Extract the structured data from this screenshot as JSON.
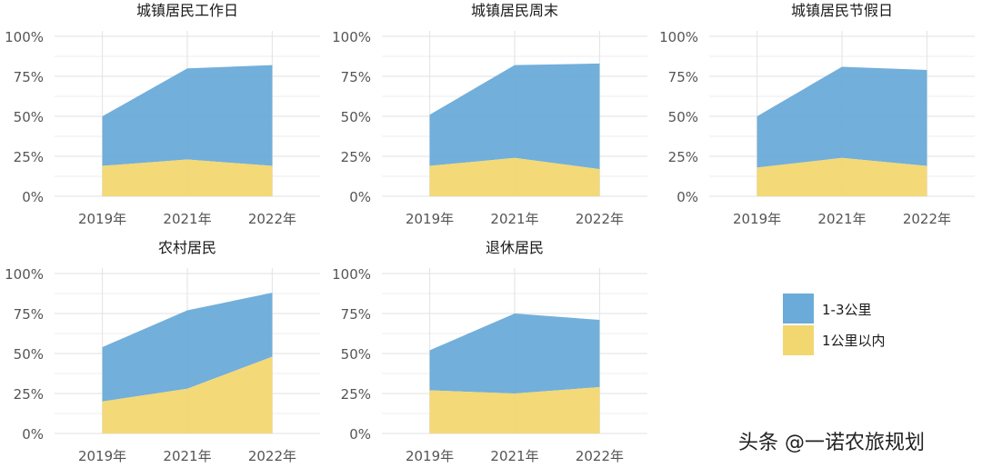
{
  "chart_data": [
    {
      "type": "area",
      "title": "城镇居民工作日",
      "x": [
        "2019年",
        "2021年",
        "2022年"
      ],
      "yticks": [
        "0%",
        "25%",
        "50%",
        "75%",
        "100%"
      ],
      "ylim": [
        0,
        1
      ],
      "grid": true,
      "stacked": true,
      "series": [
        {
          "name": "1公里以内",
          "values": [
            0.19,
            0.23,
            0.19
          ]
        },
        {
          "name": "1-3公里",
          "values": [
            0.31,
            0.57,
            0.63
          ]
        }
      ]
    },
    {
      "type": "area",
      "title": "城镇居民周末",
      "x": [
        "2019年",
        "2021年",
        "2022年"
      ],
      "yticks": [
        "0%",
        "25%",
        "50%",
        "75%",
        "100%"
      ],
      "ylim": [
        0,
        1
      ],
      "grid": true,
      "stacked": true,
      "series": [
        {
          "name": "1公里以内",
          "values": [
            0.19,
            0.24,
            0.17
          ]
        },
        {
          "name": "1-3公里",
          "values": [
            0.32,
            0.58,
            0.66
          ]
        }
      ]
    },
    {
      "type": "area",
      "title": "城镇居民节假日",
      "x": [
        "2019年",
        "2021年",
        "2022年"
      ],
      "yticks": [
        "0%",
        "25%",
        "50%",
        "75%",
        "100%"
      ],
      "ylim": [
        0,
        1
      ],
      "grid": true,
      "stacked": true,
      "series": [
        {
          "name": "1公里以内",
          "values": [
            0.18,
            0.24,
            0.19
          ]
        },
        {
          "name": "1-3公里",
          "values": [
            0.32,
            0.57,
            0.6
          ]
        }
      ]
    },
    {
      "type": "area",
      "title": "农村居民",
      "x": [
        "2019年",
        "2021年",
        "2022年"
      ],
      "yticks": [
        "0%",
        "25%",
        "50%",
        "75%",
        "100%"
      ],
      "ylim": [
        0,
        1
      ],
      "grid": true,
      "stacked": true,
      "series": [
        {
          "name": "1公里以内",
          "values": [
            0.2,
            0.28,
            0.48
          ]
        },
        {
          "name": "1-3公里",
          "values": [
            0.34,
            0.49,
            0.4
          ]
        }
      ]
    },
    {
      "type": "area",
      "title": "退休居民",
      "x": [
        "2019年",
        "2021年",
        "2022年"
      ],
      "yticks": [
        "0%",
        "25%",
        "50%",
        "75%",
        "100%"
      ],
      "ylim": [
        0,
        1
      ],
      "grid": true,
      "stacked": true,
      "series": [
        {
          "name": "1公里以内",
          "values": [
            0.27,
            0.25,
            0.29
          ]
        },
        {
          "name": "1-3公里",
          "values": [
            0.25,
            0.5,
            0.42
          ]
        }
      ]
    }
  ],
  "legend": {
    "placement": "bottom-right",
    "items": [
      {
        "label": "1-3公里",
        "color": "#6aabd9"
      },
      {
        "label": "1公里以内",
        "color": "#f2d770"
      }
    ]
  },
  "colors": {
    "upper": "#6aabd9",
    "lower": "#f2d770",
    "grid": "#e6e6e6"
  },
  "watermark": "头条 @一诺农旅规划"
}
